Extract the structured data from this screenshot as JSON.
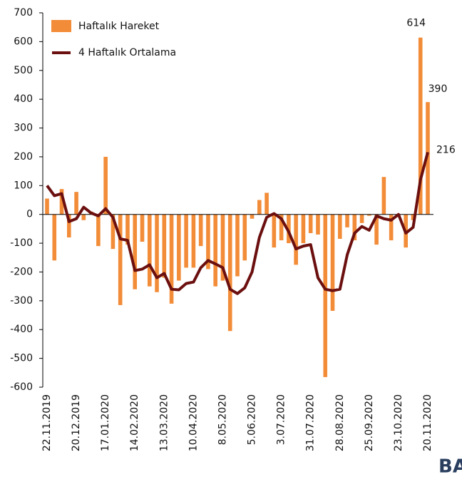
{
  "chart_data": {
    "type": "bar_line",
    "categories": [
      "22.11.2019",
      null,
      null,
      null,
      "20.12.2019",
      null,
      null,
      null,
      "17.01.2020",
      null,
      null,
      null,
      "14.02.2020",
      null,
      null,
      null,
      "13.03.2020",
      null,
      null,
      null,
      "10.04.2020",
      null,
      null,
      null,
      "8.05.2020",
      null,
      null,
      null,
      "5.06.2020",
      null,
      null,
      null,
      "3.07.2020",
      null,
      null,
      null,
      "31.07.2020",
      null,
      null,
      null,
      "28.08.2020",
      null,
      null,
      null,
      "25.09.2020",
      null,
      null,
      null,
      "23.10.2020",
      null,
      null,
      null,
      "20.11.2020"
    ],
    "series": [
      {
        "name": "Haftalık Hareket",
        "type": "bar",
        "color": "#f28c38",
        "values": [
          55,
          -160,
          88,
          -80,
          78,
          -20,
          10,
          -110,
          200,
          -120,
          -315,
          -105,
          -260,
          -95,
          -250,
          -270,
          -220,
          -310,
          -230,
          -185,
          -185,
          -110,
          -190,
          -250,
          -230,
          -405,
          -215,
          -160,
          -15,
          50,
          75,
          -115,
          -90,
          -100,
          -175,
          -100,
          -65,
          -70,
          -565,
          -335,
          -85,
          -45,
          -90,
          -30,
          -5,
          -105,
          130,
          -90,
          -5,
          -115,
          -20,
          614,
          390
        ]
      },
      {
        "name": "4 Haftalık Ortalama",
        "type": "line",
        "color": "#6b0f0f",
        "values": [
          100,
          65,
          72,
          -25,
          -15,
          25,
          5,
          -5,
          20,
          -10,
          -85,
          -90,
          -195,
          -190,
          -175,
          -220,
          -205,
          -260,
          -262,
          -240,
          -235,
          -185,
          -160,
          -172,
          -185,
          -260,
          -275,
          -255,
          -200,
          -80,
          -10,
          3,
          -15,
          -60,
          -120,
          -110,
          -105,
          -220,
          -260,
          -265,
          -260,
          -140,
          -65,
          -42,
          -55,
          -5,
          -15,
          -20,
          0,
          -65,
          -45,
          120,
          216
        ]
      }
    ],
    "ylim": [
      -600,
      700
    ],
    "yticks": [
      -600,
      -500,
      -400,
      -300,
      -200,
      -100,
      0,
      100,
      200,
      300,
      400,
      500,
      600,
      700
    ],
    "legend": "upper left",
    "logo_text": "BA"
  }
}
